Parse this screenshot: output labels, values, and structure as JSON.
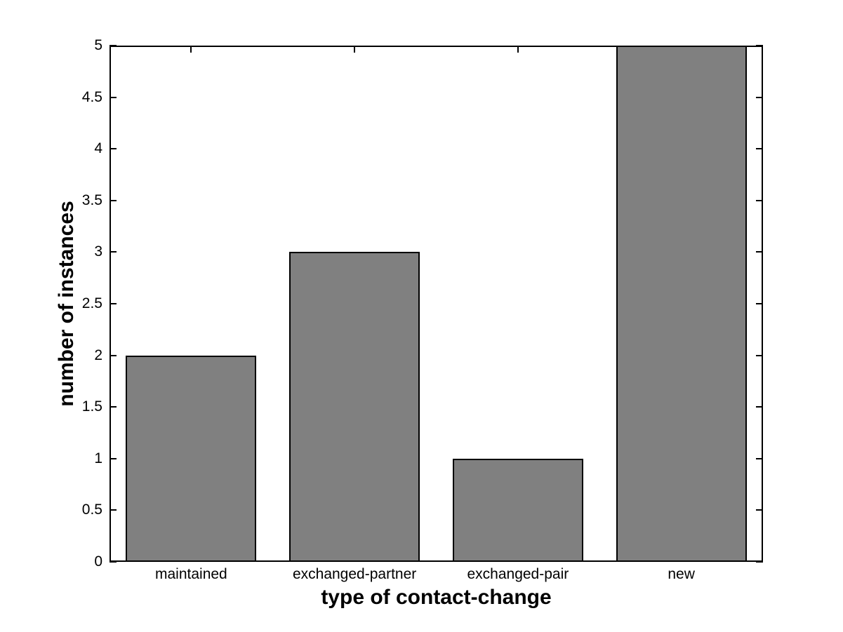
{
  "chart_data": {
    "type": "bar",
    "title": "",
    "categories": [
      "maintained",
      "exchanged-partner",
      "exchanged-pair",
      "new"
    ],
    "values": [
      2,
      3,
      1,
      5
    ],
    "xlabel": "type of contact-change",
    "ylabel": "number of instances",
    "ylim": [
      0,
      5
    ],
    "ytick_step": 0.5,
    "ytick_labels": [
      "0",
      "0.5",
      "1",
      "1.5",
      "2",
      "2.5",
      "3",
      "3.5",
      "4",
      "4.5",
      "5"
    ],
    "bar_width_fraction": 0.8,
    "bar_color": "#808080",
    "bar_edge_color": "#000000",
    "axis_color": "#000000",
    "background_color": "#ffffff",
    "grid": false,
    "legend": "none"
  }
}
